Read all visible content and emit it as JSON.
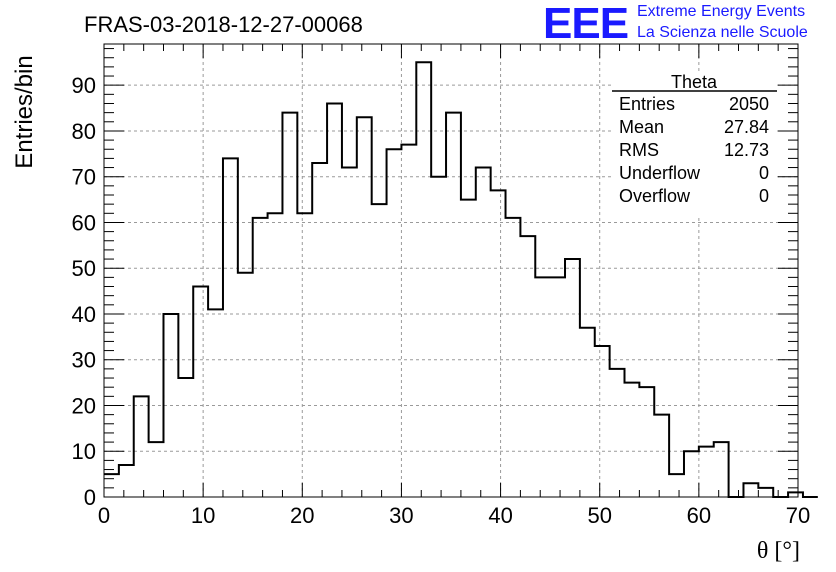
{
  "chart_data": {
    "type": "histogram",
    "title": "FRAS-03-2018-12-27-00068",
    "xlabel": "θ [°]",
    "ylabel": "Entries/bin",
    "xlim": [
      0,
      70
    ],
    "ylim": [
      0,
      99
    ],
    "xticks": [
      0,
      10,
      20,
      30,
      40,
      50,
      60,
      70
    ],
    "yticks": [
      0,
      10,
      20,
      30,
      40,
      50,
      60,
      70,
      80,
      90
    ],
    "grid": true,
    "bin_width": 1.5,
    "bin_start": 0,
    "values": [
      5,
      7,
      22,
      12,
      40,
      26,
      46,
      41,
      74,
      49,
      61,
      62,
      84,
      62,
      73,
      86,
      72,
      83,
      64,
      76,
      77,
      95,
      70,
      84,
      65,
      72,
      67,
      61,
      57,
      48,
      48,
      52,
      37,
      33,
      28,
      25,
      24,
      18,
      5,
      10,
      11,
      12,
      0,
      3,
      2,
      0,
      1,
      0
    ],
    "stats": {
      "name": "Theta",
      "rows": [
        {
          "label": "Entries",
          "value": "2050"
        },
        {
          "label": "Mean",
          "value": "27.84"
        },
        {
          "label": "RMS",
          "value": "12.73"
        },
        {
          "label": "Underflow",
          "value": "0"
        },
        {
          "label": "Overflow",
          "value": "0"
        }
      ]
    }
  },
  "logo": {
    "mark": "EEE",
    "line1": "Extreme Energy Events",
    "line2": "La Scienza nelle Scuole",
    "color": "#1a1aff"
  }
}
